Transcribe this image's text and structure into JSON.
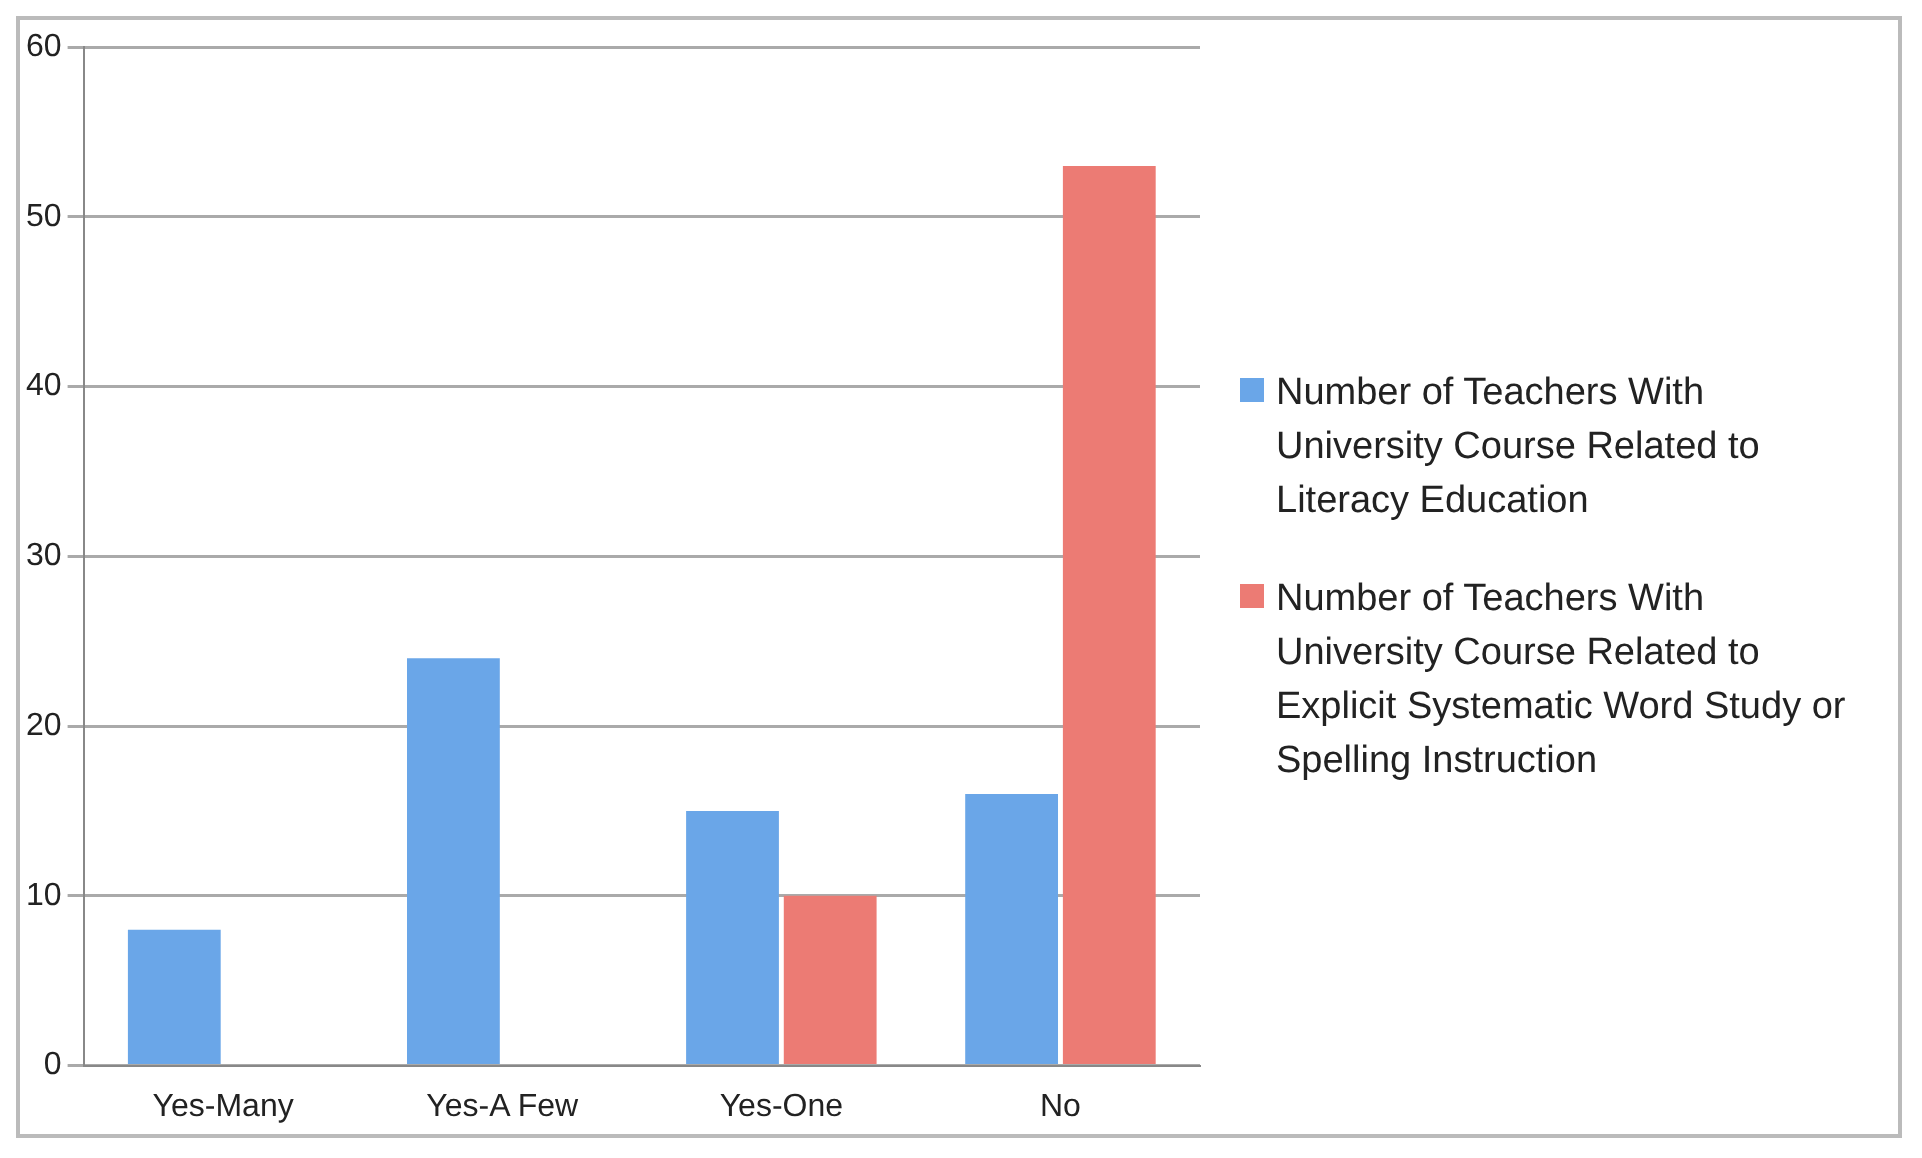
{
  "chart_data": {
    "type": "bar",
    "categories": [
      "Yes-Many",
      "Yes-A Few",
      "Yes-One",
      "No"
    ],
    "series": [
      {
        "name": "Number of Teachers With University Course Related to Literacy Education",
        "color": "#6aa6e8",
        "values": [
          8,
          24,
          15,
          16
        ]
      },
      {
        "name": "Number of Teachers With University Course Related to Explicit Systematic Word Study or Spelling Instruction",
        "color": "#ec7b74",
        "values": [
          null,
          null,
          10,
          53
        ]
      }
    ],
    "ylim": [
      0,
      60
    ],
    "yticks": [
      0,
      10,
      20,
      30,
      40,
      50,
      60
    ],
    "grid": "y",
    "legend": "right"
  }
}
